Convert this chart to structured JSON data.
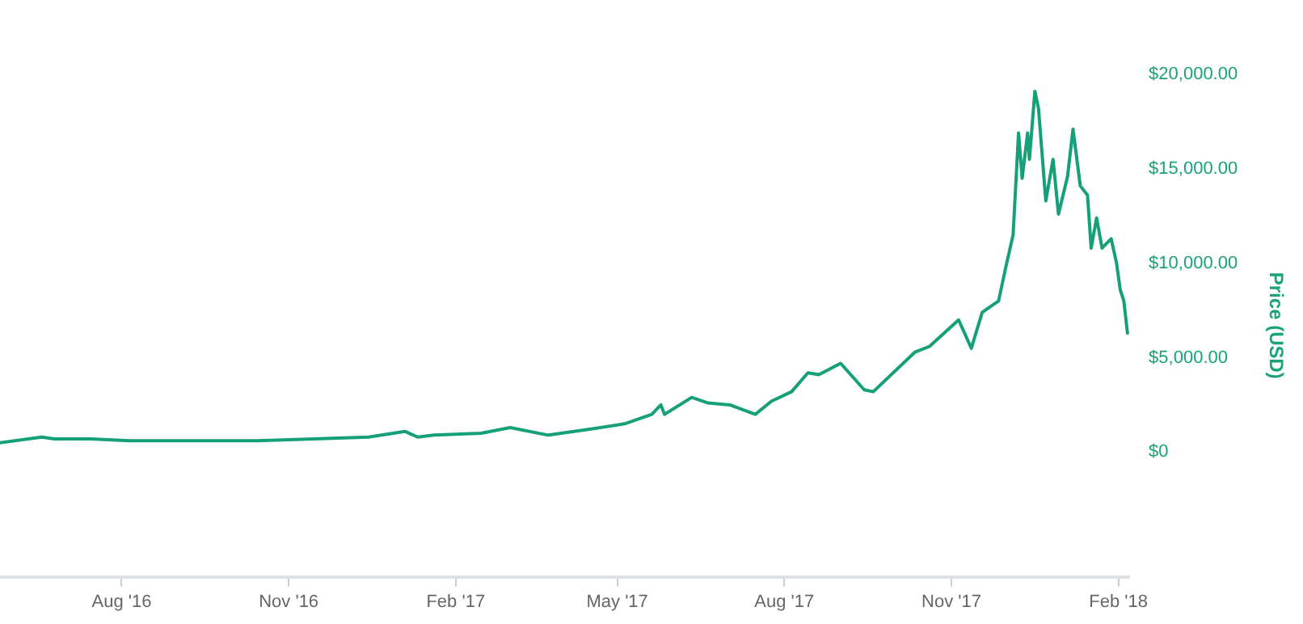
{
  "chart_data": {
    "type": "line",
    "ylabel": "Price (USD)",
    "x": [
      "2016-05-26",
      "2016-06-18",
      "2016-06-25",
      "2016-07-15",
      "2016-08-05",
      "2016-09-15",
      "2016-10-15",
      "2016-11-15",
      "2016-12-15",
      "2017-01-04",
      "2017-01-11",
      "2017-01-20",
      "2017-02-15",
      "2017-03-03",
      "2017-03-24",
      "2017-04-15",
      "2017-05-05",
      "2017-05-20",
      "2017-05-25",
      "2017-05-27",
      "2017-06-11",
      "2017-06-20",
      "2017-07-02",
      "2017-07-16",
      "2017-07-25",
      "2017-08-05",
      "2017-08-14",
      "2017-08-20",
      "2017-09-01",
      "2017-09-14",
      "2017-09-19",
      "2017-10-12",
      "2017-10-20",
      "2017-11-05",
      "2017-11-12",
      "2017-11-18",
      "2017-11-27",
      "2017-12-01",
      "2017-12-05",
      "2017-12-08",
      "2017-12-10",
      "2017-12-13",
      "2017-12-14",
      "2017-12-17",
      "2017-12-19",
      "2017-12-23",
      "2017-12-27",
      "2017-12-30",
      "2018-01-04",
      "2018-01-07",
      "2018-01-11",
      "2018-01-15",
      "2018-01-17",
      "2018-01-20",
      "2018-01-23",
      "2018-01-28",
      "2018-01-31",
      "2018-02-02",
      "2018-02-04",
      "2018-02-06"
    ],
    "series": [
      {
        "color": "#15a07a",
        "values": [
          500,
          800,
          700,
          700,
          600,
          600,
          600,
          700,
          800,
          1100,
          800,
          900,
          1000,
          1300,
          900,
          1200,
          1500,
          2000,
          2500,
          2000,
          2900,
          2600,
          2500,
          2000,
          2700,
          3200,
          4200,
          4100,
          4700,
          3300,
          3200,
          5300,
          5600,
          7000,
          5500,
          7400,
          8000,
          9800,
          11500,
          16900,
          14500,
          16900,
          15500,
          19100,
          18200,
          13300,
          15500,
          12600,
          14600,
          17100,
          14100,
          13600,
          10800,
          12400,
          10800,
          11300,
          10000,
          8600,
          8000,
          6300
        ]
      }
    ],
    "xlim": [
      "2016-05-26",
      "2018-02-07"
    ],
    "xticks": [
      {
        "value": "2016-08-01",
        "label": "Aug '16"
      },
      {
        "value": "2016-11-01",
        "label": "Nov '16"
      },
      {
        "value": "2017-02-01",
        "label": "Feb '17"
      },
      {
        "value": "2017-05-01",
        "label": "May '17"
      },
      {
        "value": "2017-08-01",
        "label": "Aug '17"
      },
      {
        "value": "2017-11-01",
        "label": "Nov '17"
      },
      {
        "value": "2018-02-01",
        "label": "Feb '18"
      }
    ],
    "ylim": [
      -6600,
      20000
    ],
    "yticks": [
      {
        "value": 0,
        "label": "$0"
      },
      {
        "value": 5000,
        "label": "$5,000.00"
      },
      {
        "value": 10000,
        "label": "$10,000.00"
      },
      {
        "value": 15000,
        "label": "$15,000.00"
      },
      {
        "value": 20000,
        "label": "$20,000.00"
      }
    ],
    "grid": false,
    "legend": false,
    "marker": "none",
    "line_style": "solid"
  }
}
